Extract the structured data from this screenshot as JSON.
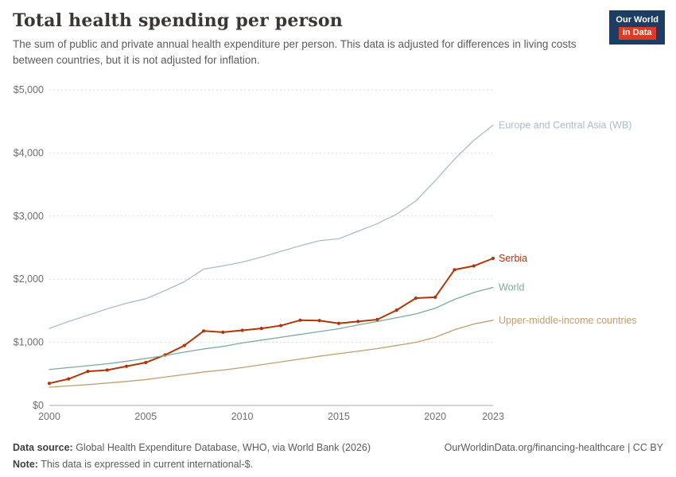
{
  "header": {
    "title": "Total health spending per person",
    "subtitle": "The sum of public and private annual health expenditure per person. This data is adjusted for differences in living costs between countries, but it is not adjusted for inflation.",
    "logo": {
      "line1": "Our World",
      "line2": "in Data"
    }
  },
  "chart_data": {
    "type": "line",
    "title": "Total health spending per person",
    "xlabel": "",
    "ylabel": "",
    "ylim": [
      0,
      5000
    ],
    "yticks": [
      0,
      1000,
      2000,
      3000,
      4000,
      5000
    ],
    "ytick_labels": [
      "$0",
      "$1,000",
      "$2,000",
      "$3,000",
      "$4,000",
      "$5,000"
    ],
    "xticks": [
      2000,
      2005,
      2010,
      2015,
      2020,
      2023
    ],
    "grid": true,
    "legend_position": "right-of-line-end",
    "x": [
      2000,
      2001,
      2002,
      2003,
      2004,
      2005,
      2006,
      2007,
      2008,
      2009,
      2010,
      2011,
      2012,
      2013,
      2014,
      2015,
      2016,
      2017,
      2018,
      2019,
      2020,
      2021,
      2022,
      2023
    ],
    "series": [
      {
        "name": "Europe and Central Asia (WB)",
        "color": "#a7bdcd",
        "highlight": false,
        "markers": false,
        "values": [
          1220,
          1330,
          1430,
          1530,
          1620,
          1690,
          1820,
          1960,
          2160,
          2210,
          2270,
          2350,
          2440,
          2530,
          2610,
          2640,
          2760,
          2880,
          3030,
          3240,
          3560,
          3900,
          4200,
          4440
        ]
      },
      {
        "name": "Serbia",
        "color": "#b13507",
        "highlight": true,
        "markers": true,
        "values": [
          350,
          420,
          540,
          560,
          620,
          680,
          800,
          950,
          1180,
          1160,
          1190,
          1220,
          1265,
          1350,
          1345,
          1300,
          1330,
          1360,
          1510,
          1700,
          1715,
          2150,
          2210,
          2330
        ]
      },
      {
        "name": "World",
        "color": "#79ab9b",
        "highlight": false,
        "markers": false,
        "values": [
          570,
          600,
          630,
          660,
          700,
          745,
          790,
          845,
          895,
          935,
          990,
          1035,
          1080,
          1125,
          1170,
          1215,
          1275,
          1330,
          1390,
          1450,
          1540,
          1680,
          1790,
          1870
        ]
      },
      {
        "name": "Upper-middle-income countries",
        "color": "#c69c6f",
        "highlight": false,
        "markers": false,
        "values": [
          290,
          310,
          330,
          355,
          380,
          410,
          450,
          490,
          530,
          560,
          600,
          645,
          690,
          735,
          780,
          820,
          860,
          900,
          950,
          1000,
          1080,
          1200,
          1290,
          1350
        ]
      }
    ]
  },
  "footer": {
    "datasource_label": "Data source:",
    "datasource_text": " Global Health Expenditure Database, WHO, via World Bank (2026)",
    "note_label": "Note:",
    "note_text": " This data is expressed in current international-$.",
    "link": "OurWorldinData.org/financing-healthcare | CC BY"
  }
}
